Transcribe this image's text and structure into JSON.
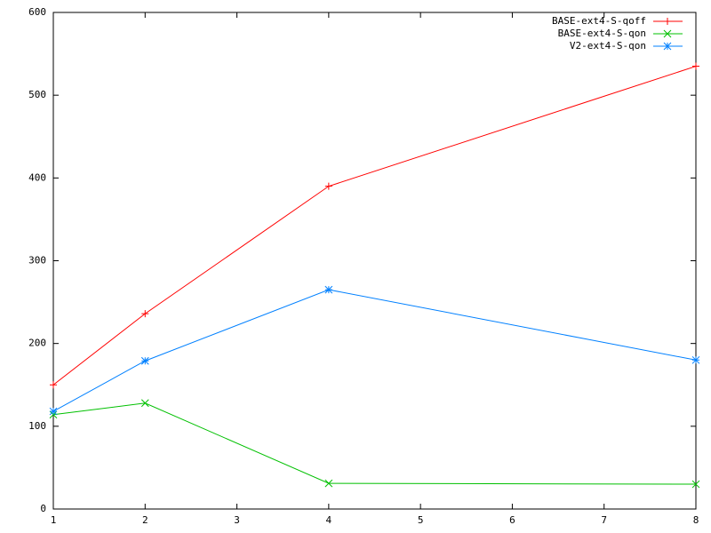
{
  "chart_data": {
    "type": "line",
    "x": [
      1,
      2,
      4,
      8
    ],
    "xlim": [
      1,
      8
    ],
    "xticks": [
      1,
      2,
      3,
      4,
      5,
      6,
      7,
      8
    ],
    "ylim": [
      0,
      600
    ],
    "yticks": [
      0,
      100,
      200,
      300,
      400,
      500,
      600
    ],
    "grid": false,
    "legend": "upper-right",
    "series": [
      {
        "name": "BASE-ext4-S-qoff",
        "color": "#ff0000",
        "marker": "plus",
        "values": [
          150,
          236,
          390,
          535
        ]
      },
      {
        "name": "BASE-ext4-S-qon",
        "color": "#00c000",
        "marker": "cross",
        "values": [
          114,
          128,
          31,
          30
        ]
      },
      {
        "name": "V2-ext4-S-qon",
        "color": "#0080ff",
        "marker": "star",
        "values": [
          118,
          179,
          265,
          180
        ]
      }
    ]
  }
}
